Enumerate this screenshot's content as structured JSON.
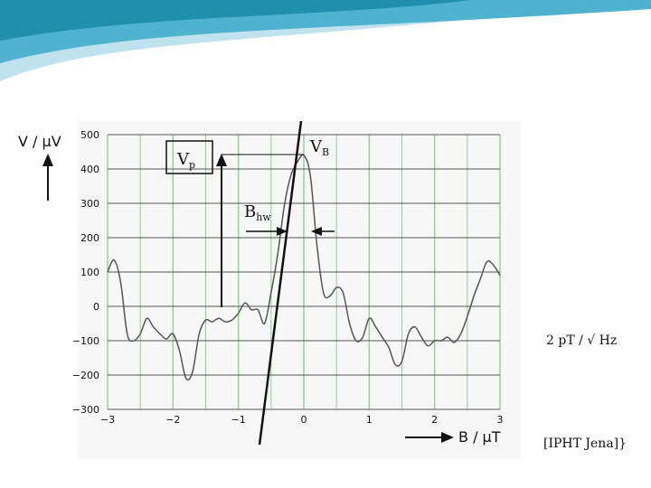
{
  "slide": {
    "noise_note": "2 pT / √ Hz",
    "source_note": "[IPHT Jena]}"
  },
  "colors": {
    "banner_light": "#bfe3ee",
    "banner_mid": "#4fb3cf",
    "banner_dark": "#1f8fae",
    "grid_major": "#555555",
    "grid_vertical": "#8fd18f",
    "curve": "#555555",
    "slope_line": "#111111"
  },
  "chart_data": {
    "type": "line",
    "title": "",
    "xlabel": "B / μT",
    "ylabel": "V / μV",
    "xlim": [
      -3,
      3
    ],
    "ylim": [
      -300,
      500
    ],
    "x_ticks": [
      "−3",
      "−2",
      "−1",
      "0",
      "1",
      "2",
      "3"
    ],
    "y_ticks": [
      "500",
      "400",
      "300",
      "200",
      "100",
      "0",
      "−100",
      "−200",
      "−300"
    ],
    "grid": "horizontal gray lines every 100, vertical green lines every 0.5",
    "series": [
      {
        "x": [
          -3.0,
          -2.9,
          -2.8,
          -2.7,
          -2.6,
          -2.5,
          -2.4,
          -2.3,
          -2.2,
          -2.1,
          -2.0,
          -1.9,
          -1.8,
          -1.7,
          -1.6,
          -1.5,
          -1.4,
          -1.3,
          -1.2,
          -1.1,
          -1.0,
          -0.9,
          -0.8,
          -0.7,
          -0.6,
          -0.5,
          -0.4,
          -0.3,
          -0.2,
          -0.1,
          0.0,
          0.1,
          0.2,
          0.3,
          0.4,
          0.5,
          0.6,
          0.7,
          0.8,
          0.9,
          1.0,
          1.1,
          1.2,
          1.3,
          1.4,
          1.5,
          1.6,
          1.7,
          1.8,
          1.9,
          2.0,
          2.1,
          2.2,
          2.3,
          2.4,
          2.5,
          2.6,
          2.7,
          2.8,
          2.9,
          3.0
        ],
        "values": [
          100,
          135,
          70,
          -80,
          -100,
          -80,
          -35,
          -60,
          -80,
          -95,
          -80,
          -130,
          -210,
          -190,
          -80,
          -40,
          -45,
          -35,
          -45,
          -40,
          -20,
          10,
          -10,
          -10,
          -50,
          40,
          150,
          290,
          380,
          420,
          440,
          380,
          180,
          40,
          30,
          55,
          40,
          -50,
          -100,
          -90,
          -35,
          -60,
          -90,
          -120,
          -170,
          -160,
          -80,
          -60,
          -90,
          -115,
          -100,
          -100,
          -90,
          -105,
          -80,
          -30,
          30,
          80,
          130,
          120,
          90
        ]
      }
    ],
    "annotations": {
      "peak_label": "V",
      "peak_sub": "B",
      "amplitude_label": "V",
      "amplitude_sub": "p",
      "halfwidth_label": "B",
      "halfwidth_sub": "hw"
    }
  }
}
